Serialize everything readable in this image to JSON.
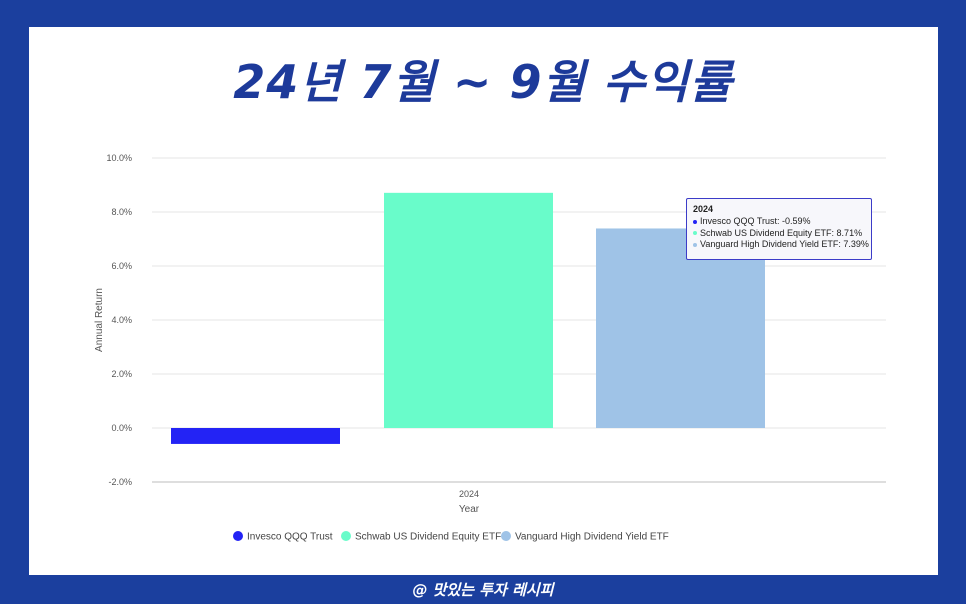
{
  "header": {
    "title": "24년 7월 ~ 9월 수익률"
  },
  "footer": {
    "text": "@ 맛있는 투자 레시피"
  },
  "colors": {
    "background": "#1b3f9e",
    "title": "#1d3a9a",
    "series": [
      "#2323f5",
      "#69fcca",
      "#9fc3e7"
    ]
  },
  "chart_data": {
    "type": "bar",
    "categories": [
      "2024"
    ],
    "xlabel": "Year",
    "ylabel": "Annual Return",
    "ylim": [
      -2,
      10
    ],
    "yticks": [
      "10.0%",
      "8.0%",
      "6.0%",
      "4.0%",
      "2.0%",
      "0.0%",
      "-2.0%"
    ],
    "ytick_values": [
      10,
      8,
      6,
      4,
      2,
      0,
      -2
    ],
    "grid": true,
    "legend_position": "bottom",
    "series": [
      {
        "name": "Invesco QQQ Trust",
        "values": [
          -0.59
        ],
        "color": "#2323f5"
      },
      {
        "name": "Schwab US Dividend Equity ETF",
        "values": [
          8.71
        ],
        "color": "#69fcca"
      },
      {
        "name": "Vanguard High Dividend Yield ETF",
        "values": [
          7.39
        ],
        "color": "#9fc3e7"
      }
    ],
    "tooltip": {
      "title": "2024",
      "rows": [
        "Invesco QQQ Trust: -0.59%",
        "Schwab US Dividend Equity ETF: 8.71%",
        "Vanguard High Dividend Yield ETF: 7.39%"
      ]
    }
  }
}
